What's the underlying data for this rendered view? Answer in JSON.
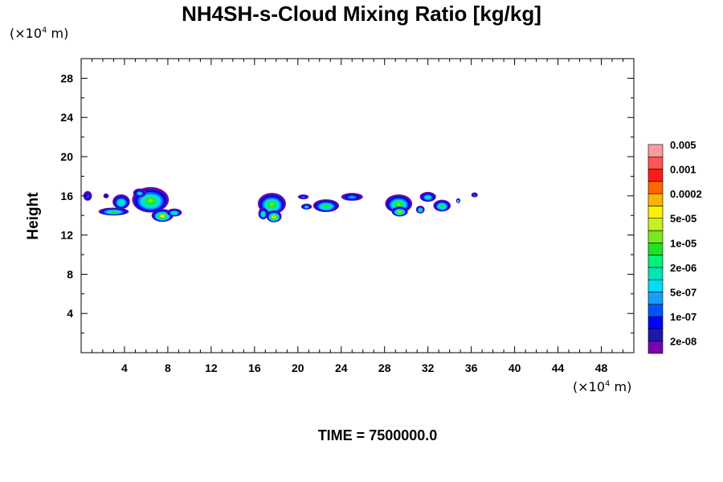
{
  "chart_data": {
    "type": "heatmap",
    "title": "NH4SH-s-Cloud Mixing Ratio [kg/kg]",
    "xlabel": "",
    "ylabel": "Height",
    "x_unit": "(×10",
    "x_unit_exp": "4",
    "x_unit_tail": " m)",
    "y_unit": "(×10",
    "y_unit_exp": "4",
    "y_unit_tail": " m)",
    "xlim": [
      0,
      51
    ],
    "ylim": [
      0,
      30
    ],
    "x_ticks": [
      4,
      8,
      12,
      16,
      20,
      24,
      28,
      32,
      36,
      40,
      44,
      48
    ],
    "y_ticks": [
      4,
      8,
      12,
      16,
      20,
      24,
      28
    ],
    "time_label": "TIME = 7500000.0",
    "colorbar": {
      "colors": [
        "#7b00b0",
        "#1a1aa8",
        "#0000ff",
        "#0055ff",
        "#1a9cff",
        "#00dcf5",
        "#00e6b4",
        "#00f07a",
        "#22e022",
        "#7ae81e",
        "#c8f020",
        "#fff000",
        "#ffb400",
        "#ff6600",
        "#ff1a1a",
        "#ff5555",
        "#ff9a9a"
      ],
      "labels": [
        "2e-08",
        "1e-07",
        "5e-07",
        "2e-06",
        "1e-05",
        "5e-05",
        "0.0002",
        "0.001",
        "0.005"
      ]
    },
    "clouds": [
      {
        "x": 0.6,
        "y": 16.0,
        "w": 0.8,
        "h": 1.0,
        "level": 3
      },
      {
        "x": 2.3,
        "y": 16.0,
        "w": 0.5,
        "h": 0.5,
        "level": 2
      },
      {
        "x": 3.7,
        "y": 15.4,
        "w": 1.6,
        "h": 1.5,
        "level": 7
      },
      {
        "x": 3.0,
        "y": 14.4,
        "w": 2.8,
        "h": 0.8,
        "level": 8
      },
      {
        "x": 6.4,
        "y": 15.6,
        "w": 3.4,
        "h": 2.6,
        "level": 9
      },
      {
        "x": 7.5,
        "y": 14.0,
        "w": 2.0,
        "h": 1.3,
        "level": 11
      },
      {
        "x": 8.6,
        "y": 14.3,
        "w": 1.4,
        "h": 0.8,
        "level": 7
      },
      {
        "x": 5.4,
        "y": 16.3,
        "w": 1.2,
        "h": 0.9,
        "level": 5
      },
      {
        "x": 17.6,
        "y": 15.2,
        "w": 2.6,
        "h": 2.2,
        "level": 9
      },
      {
        "x": 17.8,
        "y": 13.9,
        "w": 1.4,
        "h": 1.2,
        "level": 12
      },
      {
        "x": 16.8,
        "y": 14.2,
        "w": 0.9,
        "h": 1.2,
        "level": 7
      },
      {
        "x": 20.5,
        "y": 15.9,
        "w": 1.0,
        "h": 0.5,
        "level": 3
      },
      {
        "x": 22.6,
        "y": 15.0,
        "w": 2.4,
        "h": 1.3,
        "level": 8
      },
      {
        "x": 20.8,
        "y": 14.9,
        "w": 1.0,
        "h": 0.6,
        "level": 5
      },
      {
        "x": 25.0,
        "y": 15.9,
        "w": 2.0,
        "h": 0.8,
        "level": 4
      },
      {
        "x": 29.3,
        "y": 15.2,
        "w": 2.5,
        "h": 1.9,
        "level": 9
      },
      {
        "x": 29.4,
        "y": 14.4,
        "w": 1.5,
        "h": 1.0,
        "level": 10
      },
      {
        "x": 32.0,
        "y": 15.9,
        "w": 1.5,
        "h": 1.0,
        "level": 6
      },
      {
        "x": 31.3,
        "y": 14.6,
        "w": 0.8,
        "h": 0.8,
        "level": 8
      },
      {
        "x": 33.3,
        "y": 15.0,
        "w": 1.6,
        "h": 1.2,
        "level": 8
      },
      {
        "x": 34.8,
        "y": 15.5,
        "w": 0.4,
        "h": 0.5,
        "level": 5
      },
      {
        "x": 36.3,
        "y": 16.1,
        "w": 0.6,
        "h": 0.5,
        "level": 3
      }
    ]
  }
}
